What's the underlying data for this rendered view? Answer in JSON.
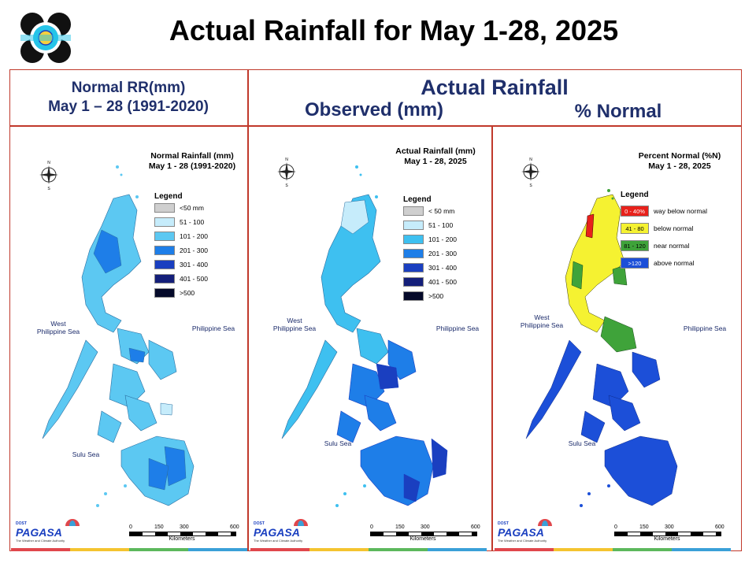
{
  "page_title": "Actual Rainfall for May 1-28, 2025",
  "header_left": {
    "line1": "Normal RR(mm)",
    "line2": "May 1 – 28 (1991-2020)"
  },
  "header_right": {
    "title": "Actual Rainfall",
    "sub_observed": "Observed (mm)",
    "sub_percent": "% Normal"
  },
  "panels": [
    {
      "title_line1": "Normal Rainfall (mm)",
      "title_line2": "May 1 - 28 (1991-2020)",
      "legend_title": "Legend",
      "legend": [
        {
          "label": "<50 mm",
          "color": "#cfcfcf"
        },
        {
          "label": "51 - 100",
          "color": "#c6ecfb"
        },
        {
          "label": "101 - 200",
          "color": "#5cc8f2"
        },
        {
          "label": "201 - 300",
          "color": "#1e7ee8"
        },
        {
          "label": "301 - 400",
          "color": "#1a3fc0"
        },
        {
          "label": "401 - 500",
          "color": "#141f7a"
        },
        {
          "label": ">500",
          "color": "#050a2a"
        }
      ],
      "sea_west_1": "West",
      "sea_west_2": "Philippine Sea",
      "sea_east": "Philippine Sea",
      "sea_south": "Sulu Sea"
    },
    {
      "title_line1": "Actual Rainfall (mm)",
      "title_line2": "May 1 - 28, 2025",
      "legend_title": "Legend",
      "legend": [
        {
          "label": "< 50 mm",
          "color": "#cfcfcf"
        },
        {
          "label": "51 - 100",
          "color": "#c6ecfb"
        },
        {
          "label": "101 - 200",
          "color": "#3ec0f0"
        },
        {
          "label": "201 - 300",
          "color": "#1e7ee8"
        },
        {
          "label": "301 - 400",
          "color": "#1a3fc0"
        },
        {
          "label": "401 - 500",
          "color": "#141f7a"
        },
        {
          "label": ">500",
          "color": "#050a2a"
        }
      ],
      "sea_west_1": "West",
      "sea_west_2": "Philippine Sea",
      "sea_east": "Philippine Sea",
      "sea_south": "Sulu Sea"
    },
    {
      "title_line1": "Percent Normal (%N)",
      "title_line2": "May 1 - 28, 2025",
      "legend_title": "Legend",
      "legend": [
        {
          "swatch": "0 - 40%",
          "label": "way below normal",
          "color": "#e8211b",
          "text_color": "#ffffff"
        },
        {
          "swatch": "41 - 80",
          "label": "below normal",
          "color": "#f5f231",
          "text_color": "#000000"
        },
        {
          "swatch": "81 - 120",
          "label": "near normal",
          "color": "#3fa33a",
          "text_color": "#000000"
        },
        {
          "swatch": ">120",
          "label": "above normal",
          "color": "#1c4fd8",
          "text_color": "#ffffff"
        }
      ],
      "sea_west_1": "West",
      "sea_west_2": "Philippine Sea",
      "sea_east": "Philippine Sea",
      "sea_south": "Sulu Sea"
    }
  ],
  "scale": {
    "ticks": [
      "0",
      "150",
      "300",
      "600"
    ],
    "unit": "Kilometers"
  },
  "branding": {
    "agency": "PAGASA",
    "dost": "DOST",
    "tagline": "The Weather and Climate Authority"
  },
  "colors": {
    "border": "#c0392b",
    "header_text": "#1f2f6b",
    "strip": [
      "#e0474c",
      "#f4c430",
      "#5cb85c",
      "#3aa0d8"
    ]
  }
}
